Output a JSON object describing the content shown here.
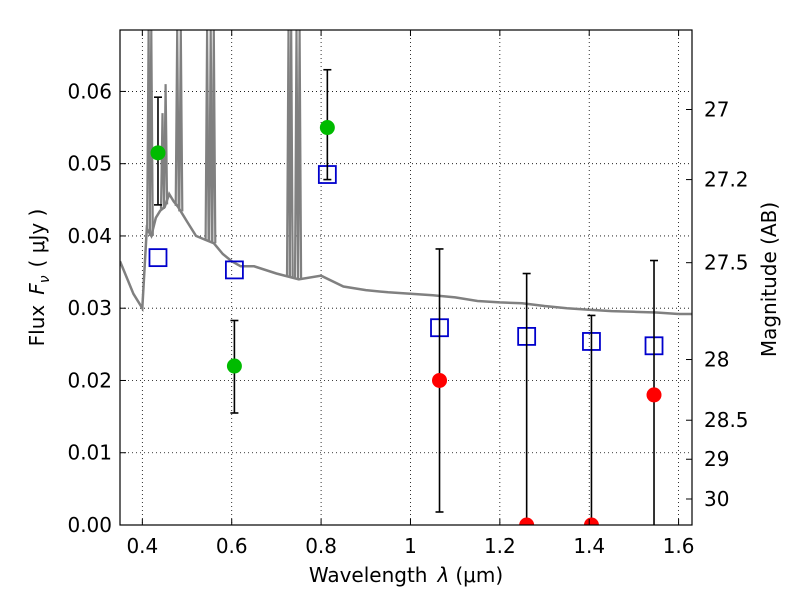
{
  "chart_data": {
    "type": "scatter",
    "xlabel": "Wavelength",
    "xlabel_symbol": "λ",
    "xlabel_unit": "(μm)",
    "ylabel": "Flux",
    "ylabel_symbol": "F",
    "ylabel_subscript": "ν",
    "ylabel_unit": "( μJy )",
    "y2label": "Magnitude (AB)",
    "xlim": [
      0.35,
      1.63
    ],
    "ylim": [
      0.0,
      0.0685
    ],
    "grid": true,
    "grid_style": "dotted",
    "x_ticks": [
      0.4,
      0.6,
      0.8,
      1.0,
      1.2,
      1.4,
      1.6
    ],
    "x_tick_labels": [
      "0.4",
      "0.6",
      "0.8",
      "1",
      "1.2",
      "1.4",
      "1.6"
    ],
    "y_ticks": [
      0.0,
      0.01,
      0.02,
      0.03,
      0.04,
      0.05,
      0.06
    ],
    "y_tick_labels": [
      "0.00",
      "0.01",
      "0.02",
      "0.03",
      "0.04",
      "0.05",
      "0.06"
    ],
    "y2_ticks": [
      {
        "label": "27",
        "flux": 0.0575
      },
      {
        "label": "27.2",
        "flux": 0.0478
      },
      {
        "label": "27.5",
        "flux": 0.0363
      },
      {
        "label": "28",
        "flux": 0.0229
      },
      {
        "label": "28.5",
        "flux": 0.0145
      },
      {
        "label": "29",
        "flux": 0.0091
      },
      {
        "label": "30",
        "flux": 0.0036
      }
    ],
    "colors": {
      "spectrum": "#808080",
      "detection": "#00bb00",
      "non_detection": "#ff0000",
      "model": "#0000cc",
      "errorbar": "#000000"
    },
    "series": [
      {
        "kind": "measured",
        "points": [
          {
            "x": 0.435,
            "y": 0.0515,
            "yerr_low": 0.0443,
            "yerr_high": 0.0592,
            "color": "detection"
          },
          {
            "x": 0.606,
            "y": 0.022,
            "yerr_low": 0.0155,
            "yerr_high": 0.0283,
            "color": "detection"
          },
          {
            "x": 0.814,
            "y": 0.055,
            "yerr_low": 0.0478,
            "yerr_high": 0.063,
            "color": "detection"
          },
          {
            "x": 1.065,
            "y": 0.02,
            "yerr_low": 0.0018,
            "yerr_high": 0.0382,
            "color": "non_detection"
          },
          {
            "x": 1.26,
            "y": 0.0,
            "yerr_low": 0.0,
            "yerr_high": 0.0348,
            "color": "non_detection"
          },
          {
            "x": 1.405,
            "y": 0.0,
            "yerr_low": 0.0,
            "yerr_high": 0.029,
            "color": "non_detection"
          },
          {
            "x": 1.545,
            "y": 0.018,
            "yerr_low": 0.0,
            "yerr_high": 0.0366,
            "color": "non_detection"
          }
        ]
      },
      {
        "kind": "model_photometry",
        "points": [
          {
            "x": 0.435,
            "y": 0.037
          },
          {
            "x": 0.606,
            "y": 0.0353
          },
          {
            "x": 0.814,
            "y": 0.0485
          },
          {
            "x": 1.065,
            "y": 0.0273
          },
          {
            "x": 1.26,
            "y": 0.0261
          },
          {
            "x": 1.405,
            "y": 0.0254
          },
          {
            "x": 1.545,
            "y": 0.0248
          }
        ]
      },
      {
        "kind": "model_spectrum",
        "x": [
          0.35,
          0.36,
          0.38,
          0.4,
          0.41,
          0.42,
          0.43,
          0.44,
          0.45,
          0.46,
          0.47,
          0.48,
          0.49,
          0.5,
          0.52,
          0.54,
          0.56,
          0.58,
          0.6,
          0.62,
          0.65,
          0.7,
          0.75,
          0.8,
          0.85,
          0.9,
          0.95,
          1.0,
          1.05,
          1.1,
          1.15,
          1.2,
          1.25,
          1.3,
          1.35,
          1.4,
          1.45,
          1.5,
          1.55,
          1.6,
          1.63
        ],
        "y": [
          0.0365,
          0.035,
          0.032,
          0.03,
          0.041,
          0.04,
          0.0425,
          0.0435,
          0.044,
          0.0458,
          0.0448,
          0.044,
          0.043,
          0.042,
          0.04,
          0.0395,
          0.039,
          0.0375,
          0.0365,
          0.0358,
          0.0358,
          0.0348,
          0.034,
          0.0345,
          0.033,
          0.0325,
          0.0322,
          0.032,
          0.0318,
          0.0315,
          0.031,
          0.0308,
          0.0307,
          0.0303,
          0.03,
          0.0298,
          0.0296,
          0.0295,
          0.0294,
          0.0292,
          0.0292
        ]
      },
      {
        "kind": "emission_lines",
        "lines": [
          {
            "x": 0.414,
            "peak": 0.0685
          },
          {
            "x": 0.42,
            "peak": 0.0685
          },
          {
            "x": 0.445,
            "peak": 0.057
          },
          {
            "x": 0.452,
            "peak": 0.061
          },
          {
            "x": 0.478,
            "peak": 0.0685
          },
          {
            "x": 0.486,
            "peak": 0.0685
          },
          {
            "x": 0.545,
            "peak": 0.0685
          },
          {
            "x": 0.553,
            "peak": 0.0685
          },
          {
            "x": 0.56,
            "peak": 0.0685
          },
          {
            "x": 0.727,
            "peak": 0.0685
          },
          {
            "x": 0.733,
            "peak": 0.0685
          },
          {
            "x": 0.745,
            "peak": 0.0685
          },
          {
            "x": 0.752,
            "peak": 0.0685
          }
        ]
      }
    ]
  }
}
